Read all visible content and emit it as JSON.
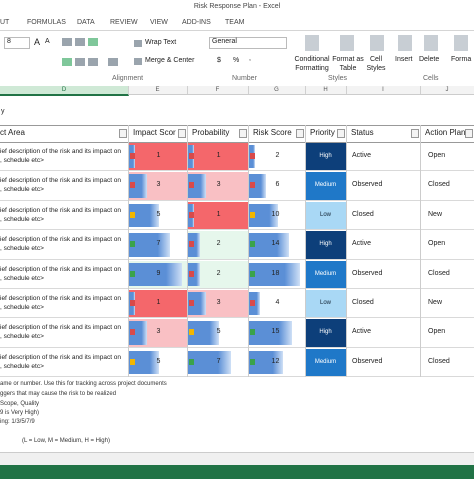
{
  "window_title": "Risk Response Plan - Excel",
  "tabs": [
    "UT",
    "FORMULAS",
    "DATA",
    "REVIEW",
    "VIEW",
    "ADD-INS",
    "TEAM"
  ],
  "ribbon": {
    "font_size": "8",
    "wrap_text": "Wrap Text",
    "merge_center": "Merge & Center",
    "number_format": "General",
    "currency": "$",
    "percent": "%",
    "comma": ",",
    "conditional_formatting": [
      "Conditional",
      "Formatting"
    ],
    "format_as_table": [
      "Format as",
      "Table"
    ],
    "cell_styles": [
      "Cell",
      "Styles"
    ],
    "insert": "Insert",
    "delete": "Delete",
    "format": "Forma",
    "groups": [
      "Alignment",
      "Number",
      "Styles",
      "Cells"
    ]
  },
  "columns": [
    "D",
    "E",
    "F",
    "G",
    "H",
    "I",
    "J"
  ],
  "corner_text": "y",
  "table": {
    "headers": [
      "ct Area",
      "Impact Scor",
      "Probability",
      "Risk Score",
      "Priority",
      "Status",
      "Action Plan"
    ],
    "rows": [
      [
        "ief description of the risk and its impact on",
        ", schedule etc>",
        1,
        1,
        2,
        "High",
        "Active",
        "Open"
      ],
      [
        "ief description of the risk and its impact on",
        ", schedule etc>",
        3,
        3,
        6,
        "Medium",
        "Observed",
        "Closed"
      ],
      [
        "ief description of the risk and its impact on",
        ", schedule etc>",
        5,
        1,
        10,
        "Low",
        "Closed",
        "New"
      ],
      [
        "ief description of the risk and its impact on",
        ", schedule etc>",
        7,
        2,
        14,
        "High",
        "Active",
        "Open"
      ],
      [
        "ief description of the risk and its impact on",
        ", schedule etc>",
        9,
        2,
        18,
        "Medium",
        "Observed",
        "Closed"
      ],
      [
        "ief description of the risk and its impact on",
        ", schedule etc>",
        1,
        3,
        4,
        "Low",
        "Closed",
        "New"
      ],
      [
        "ief description of the risk and its impact on",
        ", schedule etc>",
        3,
        5,
        15,
        "High",
        "Active",
        "Open"
      ],
      [
        "ief description of the risk and its impact on",
        ", schedule etc>",
        5,
        7,
        12,
        "Medium",
        "Observed",
        "Closed"
      ]
    ]
  },
  "notes": [
    "ame or number. Use this for tracking across project documents",
    "ggers that may cause the risk to be realized",
    "Scope, Quality",
    "9 is Very High)",
    "ing: 1/3/5/7/9",
    "(L = Low, M = Medium, H = High)"
  ]
}
